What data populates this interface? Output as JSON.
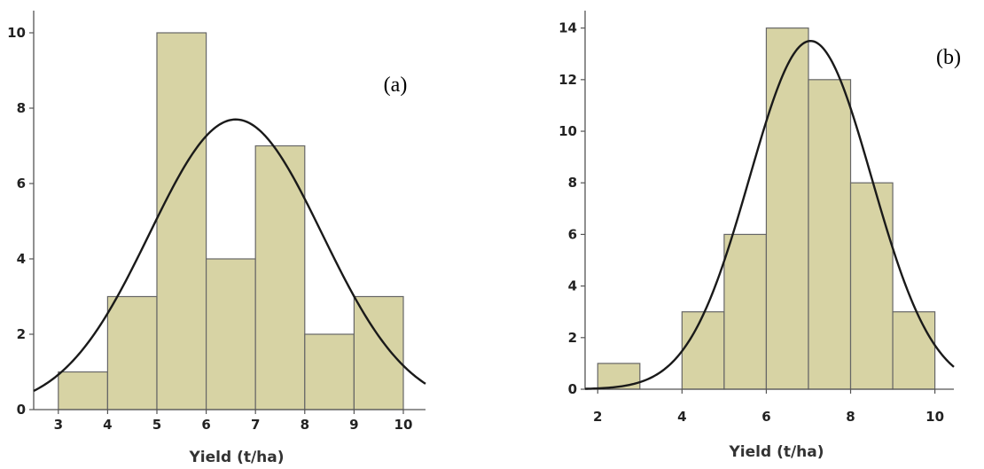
{
  "chart_data": [
    {
      "type": "bar",
      "panel_label": "(a)",
      "xlabel": "Yield (t/ha)",
      "ylabel": "",
      "x_ticks": [
        3,
        4,
        5,
        6,
        7,
        8,
        9,
        10
      ],
      "y_ticks": [
        0,
        2,
        4,
        6,
        8,
        10
      ],
      "xlim": [
        2.5,
        10.4
      ],
      "ylim": [
        0,
        10.4
      ],
      "bins": [
        {
          "x0": 3,
          "x1": 4,
          "value": 1
        },
        {
          "x0": 4,
          "x1": 5,
          "value": 3
        },
        {
          "x0": 5,
          "x1": 6,
          "value": 10
        },
        {
          "x0": 6,
          "x1": 7,
          "value": 4
        },
        {
          "x0": 7,
          "x1": 8,
          "value": 7
        },
        {
          "x0": 8,
          "x1": 9,
          "value": 2
        },
        {
          "x0": 9,
          "x1": 10,
          "value": 3
        }
      ],
      "normal_curve": {
        "mean": 6.6,
        "sd": 1.75,
        "peak": 7.7
      },
      "bar_color": "#d7d3a4",
      "bar_edge_color": "#666666",
      "curve_color": "#1a1a1a"
    },
    {
      "type": "bar",
      "panel_label": "(b)",
      "xlabel": "Yield (t/ha)",
      "ylabel": "",
      "x_ticks": [
        2,
        4,
        6,
        8,
        10
      ],
      "y_ticks": [
        0,
        2,
        4,
        6,
        8,
        10,
        12,
        14
      ],
      "xlim": [
        1.7,
        10.4
      ],
      "ylim": [
        0,
        14.4
      ],
      "bins": [
        {
          "x0": 2,
          "x1": 3,
          "value": 1
        },
        {
          "x0": 4,
          "x1": 5,
          "value": 3
        },
        {
          "x0": 5,
          "x1": 6,
          "value": 6
        },
        {
          "x0": 6,
          "x1": 7,
          "value": 14
        },
        {
          "x0": 7,
          "x1": 8,
          "value": 12
        },
        {
          "x0": 8,
          "x1": 9,
          "value": 8
        },
        {
          "x0": 9,
          "x1": 10,
          "value": 3
        }
      ],
      "normal_curve": {
        "mean": 7.05,
        "sd": 1.45,
        "peak": 13.5
      },
      "bar_color": "#d7d3a4",
      "bar_edge_color": "#666666",
      "curve_color": "#1a1a1a"
    }
  ]
}
